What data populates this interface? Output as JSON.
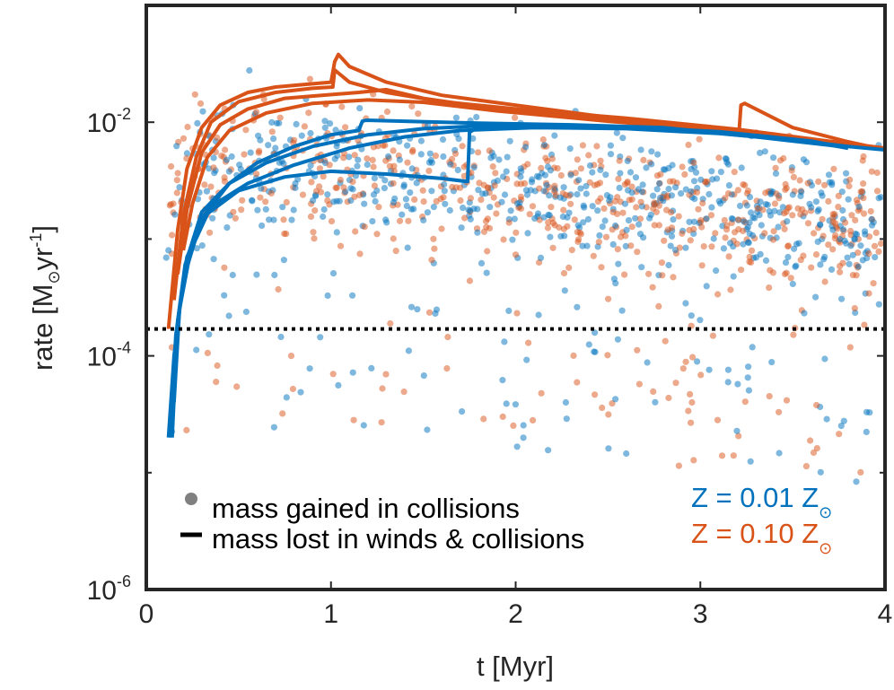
{
  "colors": {
    "blue": "#0072BD",
    "orange": "#D95319",
    "axis": "#262626",
    "legend_marker": "#808080"
  },
  "chart_data": {
    "type": "scatter",
    "xlabel": "t [Myr]",
    "ylabel_main": "rate [M",
    "ylabel_sun": "⊙",
    "ylabel_tail": "yr",
    "ylabel_exp": "-1",
    "ylabel_close": "]",
    "xlim": [
      0,
      4
    ],
    "ylim": [
      1e-06,
      0.1
    ],
    "yscale": "log",
    "x_ticks": [
      {
        "value": 0,
        "label": "0"
      },
      {
        "value": 1,
        "label": "1"
      },
      {
        "value": 2,
        "label": "2"
      },
      {
        "value": 3,
        "label": "3"
      },
      {
        "value": 4,
        "label": "4"
      }
    ],
    "y_ticks": [
      {
        "value": 0.01,
        "base": "10",
        "exp": "-2"
      },
      {
        "value": 0.0001,
        "base": "10",
        "exp": "-4"
      },
      {
        "value": 1e-06,
        "base": "10",
        "exp": "-6"
      }
    ],
    "threshold": {
      "value": 0.00017,
      "style": "dotted",
      "color": "#000000"
    },
    "legend": {
      "position": "bottom-left",
      "entries": [
        {
          "marker": "dot",
          "label": "mass gained in collisions"
        },
        {
          "marker": "line",
          "label": "mass lost in winds & collisions"
        }
      ]
    },
    "annotations": [
      {
        "text": "Z = 0.01 Z",
        "sun": "⊙",
        "color": "#0072BD"
      },
      {
        "text": "Z = 0.10 Z",
        "sun": "⊙",
        "color": "#D95319"
      }
    ],
    "series": [
      {
        "name": "Z = 0.10 Z⊙ mass loss 1",
        "color": "#D95319",
        "kind": "line",
        "points": [
          [
            0.12,
            0.00017
          ],
          [
            0.17,
            0.0012
          ],
          [
            0.22,
            0.004
          ],
          [
            0.3,
            0.009
          ],
          [
            0.4,
            0.014
          ],
          [
            0.55,
            0.018
          ],
          [
            0.7,
            0.02
          ],
          [
            0.85,
            0.021
          ],
          [
            1.0,
            0.022
          ],
          [
            1.02,
            0.033
          ],
          [
            1.04,
            0.038
          ],
          [
            1.1,
            0.03
          ],
          [
            1.3,
            0.022
          ],
          [
            1.6,
            0.017
          ],
          [
            2.0,
            0.014
          ],
          [
            2.5,
            0.011
          ],
          [
            3.0,
            0.009
          ],
          [
            3.21,
            0.0085
          ],
          [
            3.22,
            0.014
          ],
          [
            3.24,
            0.0145
          ],
          [
            3.5,
            0.009
          ],
          [
            3.8,
            0.0068
          ],
          [
            4.0,
            0.0058
          ]
        ]
      },
      {
        "name": "Z = 0.10 Z⊙ mass loss 2",
        "color": "#D95319",
        "kind": "line",
        "points": [
          [
            0.15,
            0.0003
          ],
          [
            0.2,
            0.0016
          ],
          [
            0.27,
            0.005
          ],
          [
            0.35,
            0.01
          ],
          [
            0.5,
            0.015
          ],
          [
            0.7,
            0.018
          ],
          [
            0.9,
            0.0195
          ],
          [
            1.01,
            0.02
          ],
          [
            1.02,
            0.028
          ],
          [
            1.1,
            0.022
          ],
          [
            1.3,
            0.018
          ],
          [
            1.6,
            0.015
          ],
          [
            2.0,
            0.013
          ],
          [
            2.6,
            0.0108
          ],
          [
            3.2,
            0.0087
          ],
          [
            3.6,
            0.0072
          ],
          [
            4.0,
            0.0058
          ]
        ]
      },
      {
        "name": "Z = 0.10 Z⊙ mass loss 3",
        "color": "#D95319",
        "kind": "line",
        "points": [
          [
            0.17,
            0.0005
          ],
          [
            0.22,
            0.0018
          ],
          [
            0.3,
            0.0055
          ],
          [
            0.4,
            0.0095
          ],
          [
            0.55,
            0.013
          ],
          [
            0.75,
            0.016
          ],
          [
            0.95,
            0.017
          ],
          [
            1.15,
            0.018
          ],
          [
            1.3,
            0.019
          ],
          [
            1.5,
            0.016
          ],
          [
            1.9,
            0.013
          ],
          [
            2.5,
            0.0105
          ],
          [
            3.1,
            0.0086
          ],
          [
            3.6,
            0.0072
          ],
          [
            4.0,
            0.006
          ]
        ]
      },
      {
        "name": "Z = 0.10 Z⊙ mass loss 4",
        "color": "#D95319",
        "kind": "line",
        "points": [
          [
            0.2,
            0.0008
          ],
          [
            0.25,
            0.002
          ],
          [
            0.33,
            0.005
          ],
          [
            0.45,
            0.0085
          ],
          [
            0.65,
            0.012
          ],
          [
            0.9,
            0.0145
          ],
          [
            1.2,
            0.0155
          ],
          [
            1.5,
            0.0148
          ],
          [
            1.9,
            0.0125
          ],
          [
            2.5,
            0.0102
          ],
          [
            3.1,
            0.0085
          ],
          [
            3.6,
            0.0071
          ],
          [
            4.0,
            0.006
          ]
        ]
      },
      {
        "name": "Z = 0.01 Z⊙ mass loss 1",
        "color": "#0072BD",
        "kind": "line",
        "points": [
          [
            0.12,
            2e-05
          ],
          [
            0.15,
            0.0001
          ],
          [
            0.2,
            0.00045
          ],
          [
            0.3,
            0.0015
          ],
          [
            0.45,
            0.003
          ],
          [
            0.6,
            0.0045
          ],
          [
            0.8,
            0.0062
          ],
          [
            1.0,
            0.0078
          ],
          [
            1.15,
            0.0085
          ],
          [
            1.17,
            0.0102
          ],
          [
            1.19,
            0.0104
          ],
          [
            1.4,
            0.0102
          ],
          [
            1.8,
            0.0098
          ],
          [
            2.3,
            0.0095
          ],
          [
            2.8,
            0.009
          ],
          [
            3.3,
            0.0075
          ],
          [
            3.8,
            0.0061
          ]
        ]
      },
      {
        "name": "Z = 0.01 Z⊙ mass loss 2",
        "color": "#0072BD",
        "kind": "line",
        "points": [
          [
            0.13,
            2e-05
          ],
          [
            0.16,
            0.00015
          ],
          [
            0.21,
            0.0006
          ],
          [
            0.3,
            0.0017
          ],
          [
            0.45,
            0.003
          ],
          [
            0.65,
            0.0045
          ],
          [
            0.9,
            0.0062
          ],
          [
            1.2,
            0.0078
          ],
          [
            1.5,
            0.0088
          ],
          [
            1.75,
            0.0092
          ],
          [
            2.1,
            0.0094
          ],
          [
            2.6,
            0.0091
          ],
          [
            3.1,
            0.0083
          ],
          [
            3.6,
            0.0069
          ],
          [
            3.8,
            0.006
          ]
        ]
      },
      {
        "name": "Z = 0.01 Z⊙ mass loss 3",
        "color": "#0072BD",
        "kind": "line",
        "points": [
          [
            0.14,
            2e-05
          ],
          [
            0.17,
            0.0002
          ],
          [
            0.22,
            0.0007
          ],
          [
            0.32,
            0.0016
          ],
          [
            0.5,
            0.0026
          ],
          [
            0.75,
            0.0034
          ],
          [
            1.0,
            0.0038
          ],
          [
            1.3,
            0.0036
          ],
          [
            1.6,
            0.0033
          ],
          [
            1.74,
            0.0031
          ],
          [
            1.75,
            0.0082
          ],
          [
            1.8,
            0.0092
          ],
          [
            2.3,
            0.0091
          ],
          [
            2.8,
            0.0088
          ],
          [
            3.3,
            0.0077
          ],
          [
            3.8,
            0.0062
          ],
          [
            4.0,
            0.0058
          ]
        ]
      },
      {
        "name": "Z = 0.01 Z⊙ mass loss 4",
        "color": "#0072BD",
        "kind": "line",
        "points": [
          [
            0.15,
            4e-05
          ],
          [
            0.18,
            0.00025
          ],
          [
            0.24,
            0.0008
          ],
          [
            0.35,
            0.0019
          ],
          [
            0.55,
            0.003
          ],
          [
            0.8,
            0.0043
          ],
          [
            1.1,
            0.006
          ],
          [
            1.4,
            0.0075
          ],
          [
            1.7,
            0.0085
          ],
          [
            2.1,
            0.009
          ],
          [
            2.6,
            0.0088
          ],
          [
            3.1,
            0.008
          ],
          [
            3.6,
            0.0068
          ],
          [
            3.8,
            0.006
          ]
        ]
      }
    ]
  }
}
